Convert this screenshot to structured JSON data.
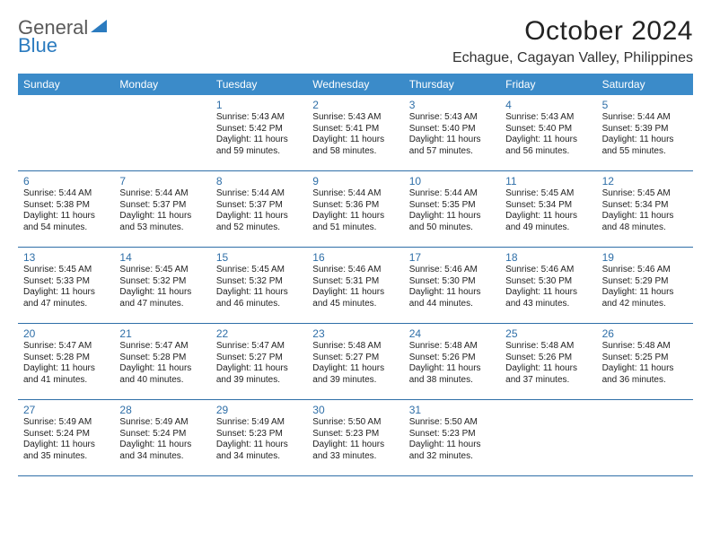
{
  "logo": {
    "word1": "General",
    "word2": "Blue"
  },
  "title": "October 2024",
  "location": "Echague, Cagayan Valley, Philippines",
  "colors": {
    "accent": "#3b8bc9",
    "accentText": "#ffffff",
    "daynum": "#2f6fa8",
    "rowBorder": "#2f6fa8",
    "logoGray": "#5a5a5a",
    "logoBlue": "#2b7bbf"
  },
  "dayHeaders": [
    "Sunday",
    "Monday",
    "Tuesday",
    "Wednesday",
    "Thursday",
    "Friday",
    "Saturday"
  ],
  "weeks": [
    [
      {
        "day": "",
        "sunrise": "",
        "sunset": "",
        "daylight1": "",
        "daylight2": ""
      },
      {
        "day": "",
        "sunrise": "",
        "sunset": "",
        "daylight1": "",
        "daylight2": ""
      },
      {
        "day": "1",
        "sunrise": "Sunrise: 5:43 AM",
        "sunset": "Sunset: 5:42 PM",
        "daylight1": "Daylight: 11 hours",
        "daylight2": "and 59 minutes."
      },
      {
        "day": "2",
        "sunrise": "Sunrise: 5:43 AM",
        "sunset": "Sunset: 5:41 PM",
        "daylight1": "Daylight: 11 hours",
        "daylight2": "and 58 minutes."
      },
      {
        "day": "3",
        "sunrise": "Sunrise: 5:43 AM",
        "sunset": "Sunset: 5:40 PM",
        "daylight1": "Daylight: 11 hours",
        "daylight2": "and 57 minutes."
      },
      {
        "day": "4",
        "sunrise": "Sunrise: 5:43 AM",
        "sunset": "Sunset: 5:40 PM",
        "daylight1": "Daylight: 11 hours",
        "daylight2": "and 56 minutes."
      },
      {
        "day": "5",
        "sunrise": "Sunrise: 5:44 AM",
        "sunset": "Sunset: 5:39 PM",
        "daylight1": "Daylight: 11 hours",
        "daylight2": "and 55 minutes."
      }
    ],
    [
      {
        "day": "6",
        "sunrise": "Sunrise: 5:44 AM",
        "sunset": "Sunset: 5:38 PM",
        "daylight1": "Daylight: 11 hours",
        "daylight2": "and 54 minutes."
      },
      {
        "day": "7",
        "sunrise": "Sunrise: 5:44 AM",
        "sunset": "Sunset: 5:37 PM",
        "daylight1": "Daylight: 11 hours",
        "daylight2": "and 53 minutes."
      },
      {
        "day": "8",
        "sunrise": "Sunrise: 5:44 AM",
        "sunset": "Sunset: 5:37 PM",
        "daylight1": "Daylight: 11 hours",
        "daylight2": "and 52 minutes."
      },
      {
        "day": "9",
        "sunrise": "Sunrise: 5:44 AM",
        "sunset": "Sunset: 5:36 PM",
        "daylight1": "Daylight: 11 hours",
        "daylight2": "and 51 minutes."
      },
      {
        "day": "10",
        "sunrise": "Sunrise: 5:44 AM",
        "sunset": "Sunset: 5:35 PM",
        "daylight1": "Daylight: 11 hours",
        "daylight2": "and 50 minutes."
      },
      {
        "day": "11",
        "sunrise": "Sunrise: 5:45 AM",
        "sunset": "Sunset: 5:34 PM",
        "daylight1": "Daylight: 11 hours",
        "daylight2": "and 49 minutes."
      },
      {
        "day": "12",
        "sunrise": "Sunrise: 5:45 AM",
        "sunset": "Sunset: 5:34 PM",
        "daylight1": "Daylight: 11 hours",
        "daylight2": "and 48 minutes."
      }
    ],
    [
      {
        "day": "13",
        "sunrise": "Sunrise: 5:45 AM",
        "sunset": "Sunset: 5:33 PM",
        "daylight1": "Daylight: 11 hours",
        "daylight2": "and 47 minutes."
      },
      {
        "day": "14",
        "sunrise": "Sunrise: 5:45 AM",
        "sunset": "Sunset: 5:32 PM",
        "daylight1": "Daylight: 11 hours",
        "daylight2": "and 47 minutes."
      },
      {
        "day": "15",
        "sunrise": "Sunrise: 5:45 AM",
        "sunset": "Sunset: 5:32 PM",
        "daylight1": "Daylight: 11 hours",
        "daylight2": "and 46 minutes."
      },
      {
        "day": "16",
        "sunrise": "Sunrise: 5:46 AM",
        "sunset": "Sunset: 5:31 PM",
        "daylight1": "Daylight: 11 hours",
        "daylight2": "and 45 minutes."
      },
      {
        "day": "17",
        "sunrise": "Sunrise: 5:46 AM",
        "sunset": "Sunset: 5:30 PM",
        "daylight1": "Daylight: 11 hours",
        "daylight2": "and 44 minutes."
      },
      {
        "day": "18",
        "sunrise": "Sunrise: 5:46 AM",
        "sunset": "Sunset: 5:30 PM",
        "daylight1": "Daylight: 11 hours",
        "daylight2": "and 43 minutes."
      },
      {
        "day": "19",
        "sunrise": "Sunrise: 5:46 AM",
        "sunset": "Sunset: 5:29 PM",
        "daylight1": "Daylight: 11 hours",
        "daylight2": "and 42 minutes."
      }
    ],
    [
      {
        "day": "20",
        "sunrise": "Sunrise: 5:47 AM",
        "sunset": "Sunset: 5:28 PM",
        "daylight1": "Daylight: 11 hours",
        "daylight2": "and 41 minutes."
      },
      {
        "day": "21",
        "sunrise": "Sunrise: 5:47 AM",
        "sunset": "Sunset: 5:28 PM",
        "daylight1": "Daylight: 11 hours",
        "daylight2": "and 40 minutes."
      },
      {
        "day": "22",
        "sunrise": "Sunrise: 5:47 AM",
        "sunset": "Sunset: 5:27 PM",
        "daylight1": "Daylight: 11 hours",
        "daylight2": "and 39 minutes."
      },
      {
        "day": "23",
        "sunrise": "Sunrise: 5:48 AM",
        "sunset": "Sunset: 5:27 PM",
        "daylight1": "Daylight: 11 hours",
        "daylight2": "and 39 minutes."
      },
      {
        "day": "24",
        "sunrise": "Sunrise: 5:48 AM",
        "sunset": "Sunset: 5:26 PM",
        "daylight1": "Daylight: 11 hours",
        "daylight2": "and 38 minutes."
      },
      {
        "day": "25",
        "sunrise": "Sunrise: 5:48 AM",
        "sunset": "Sunset: 5:26 PM",
        "daylight1": "Daylight: 11 hours",
        "daylight2": "and 37 minutes."
      },
      {
        "day": "26",
        "sunrise": "Sunrise: 5:48 AM",
        "sunset": "Sunset: 5:25 PM",
        "daylight1": "Daylight: 11 hours",
        "daylight2": "and 36 minutes."
      }
    ],
    [
      {
        "day": "27",
        "sunrise": "Sunrise: 5:49 AM",
        "sunset": "Sunset: 5:24 PM",
        "daylight1": "Daylight: 11 hours",
        "daylight2": "and 35 minutes."
      },
      {
        "day": "28",
        "sunrise": "Sunrise: 5:49 AM",
        "sunset": "Sunset: 5:24 PM",
        "daylight1": "Daylight: 11 hours",
        "daylight2": "and 34 minutes."
      },
      {
        "day": "29",
        "sunrise": "Sunrise: 5:49 AM",
        "sunset": "Sunset: 5:23 PM",
        "daylight1": "Daylight: 11 hours",
        "daylight2": "and 34 minutes."
      },
      {
        "day": "30",
        "sunrise": "Sunrise: 5:50 AM",
        "sunset": "Sunset: 5:23 PM",
        "daylight1": "Daylight: 11 hours",
        "daylight2": "and 33 minutes."
      },
      {
        "day": "31",
        "sunrise": "Sunrise: 5:50 AM",
        "sunset": "Sunset: 5:23 PM",
        "daylight1": "Daylight: 11 hours",
        "daylight2": "and 32 minutes."
      },
      {
        "day": "",
        "sunrise": "",
        "sunset": "",
        "daylight1": "",
        "daylight2": ""
      },
      {
        "day": "",
        "sunrise": "",
        "sunset": "",
        "daylight1": "",
        "daylight2": ""
      }
    ]
  ]
}
